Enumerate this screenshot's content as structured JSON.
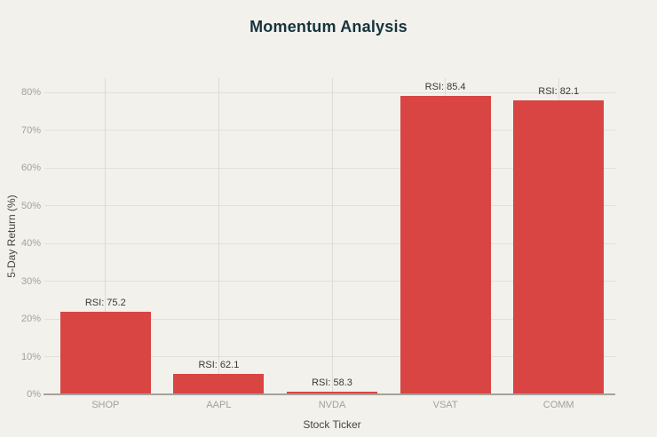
{
  "page": {
    "background_color": "#f2f1ec"
  },
  "chart_data": {
    "type": "bar",
    "title": "Momentum Analysis",
    "xlabel": "Stock Ticker",
    "ylabel": "5-Day Return (%)",
    "categories": [
      "SHOP",
      "AAPL",
      "NVDA",
      "VSAT",
      "COMM"
    ],
    "series": [
      {
        "name": "5-Day Return (%)",
        "values": [
          21.9,
          5.3,
          0.8,
          79.2,
          78.0
        ]
      }
    ],
    "rsi_values": [
      75.2,
      62.1,
      58.3,
      85.4,
      82.1
    ],
    "bar_labels": [
      "RSI: 75.2",
      "RSI: 62.1",
      "RSI: 58.3",
      "RSI: 85.4",
      "RSI: 82.1"
    ],
    "y_tick_labels": [
      "0%",
      "10%",
      "20%",
      "30%",
      "40%",
      "50%",
      "60%",
      "70%",
      "80%"
    ],
    "y_tick_values": [
      0,
      10,
      20,
      30,
      40,
      50,
      60,
      70,
      80
    ],
    "ylim": [
      0,
      83.8
    ],
    "grid": true,
    "legend_position": "none",
    "colors": {
      "bar": "#d84542",
      "title": "#16343c",
      "background": "#f2f1ec",
      "gridline": "#e1e0da",
      "vertical_gridline": "#dcdbd5",
      "axis_line": "#a3a29c",
      "tick_label": "#a2a19b",
      "axis_title": "#45443f",
      "bar_label": "#3a3936"
    }
  }
}
